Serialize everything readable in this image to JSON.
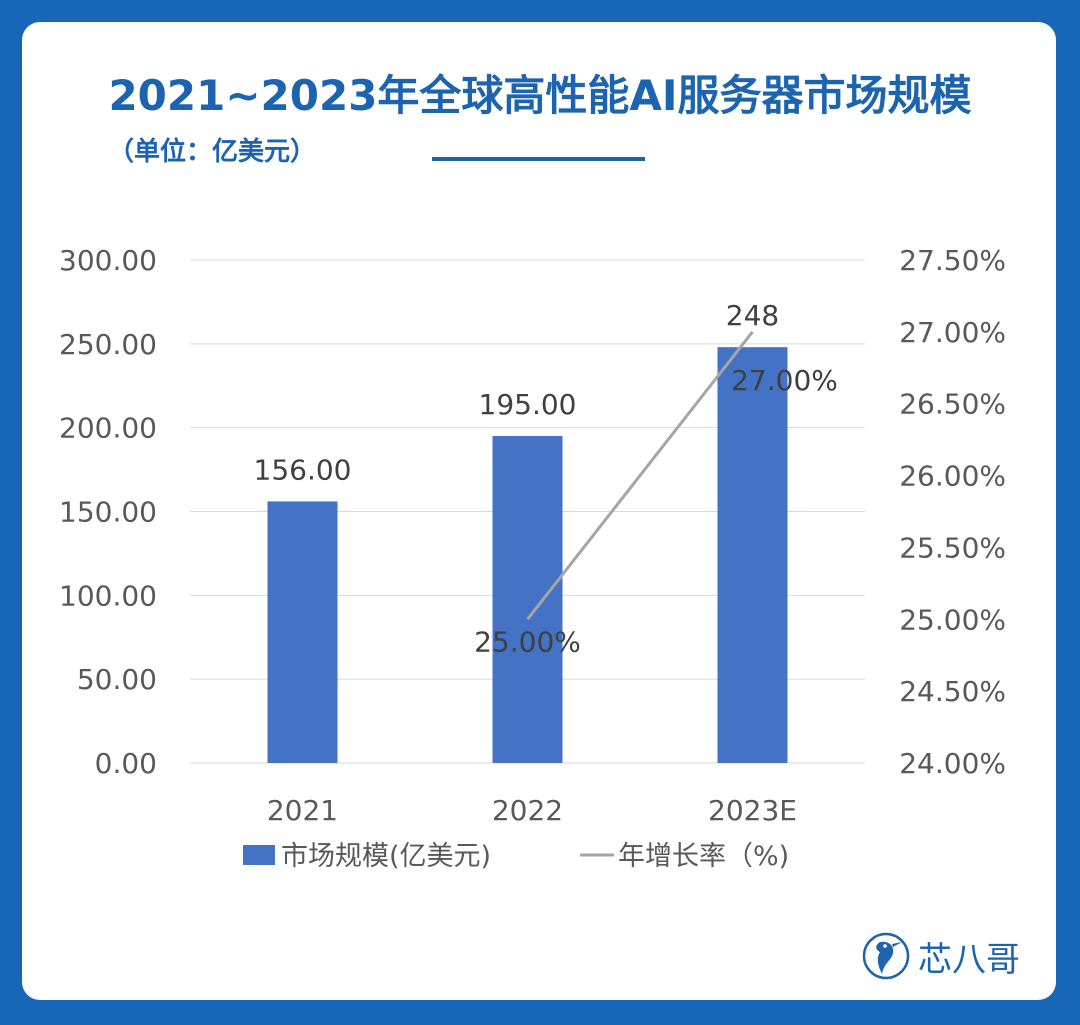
{
  "title": "2021~2023年全球高性能AI服务器市场规模",
  "subtitle": "（单位：亿美元）",
  "brand": "芯八哥",
  "colors": {
    "background": "#1766b8",
    "title": "#1c63b0",
    "bar": "#4472c4",
    "line": "#a5a5a5",
    "axis_text": "#595959",
    "label_text": "#404040",
    "grid": "#d9d9d9"
  },
  "chart_data": {
    "type": "bar",
    "categories": [
      "2021",
      "2022",
      "2023E"
    ],
    "series": [
      {
        "name": "市场规模(亿美元)",
        "type": "bar",
        "axis": "left",
        "values": [
          156,
          195,
          248
        ],
        "data_labels": [
          "156.00",
          "195.00",
          "248"
        ]
      },
      {
        "name": "年增长率（%)",
        "type": "line",
        "axis": "right",
        "values": [
          null,
          25.0,
          27.0
        ],
        "data_labels": [
          "",
          "25.00%",
          "27.00%"
        ]
      }
    ],
    "y_left": {
      "range": [
        0,
        300
      ],
      "ticks": [
        "0.00",
        "50.00",
        "100.00",
        "150.00",
        "200.00",
        "250.00",
        "300.00"
      ]
    },
    "y_right": {
      "range": [
        24.0,
        27.5
      ],
      "ticks": [
        "24.00%",
        "24.50%",
        "25.00%",
        "25.50%",
        "26.00%",
        "26.50%",
        "27.00%",
        "27.50%"
      ]
    },
    "grid": true,
    "legend_position": "bottom"
  }
}
